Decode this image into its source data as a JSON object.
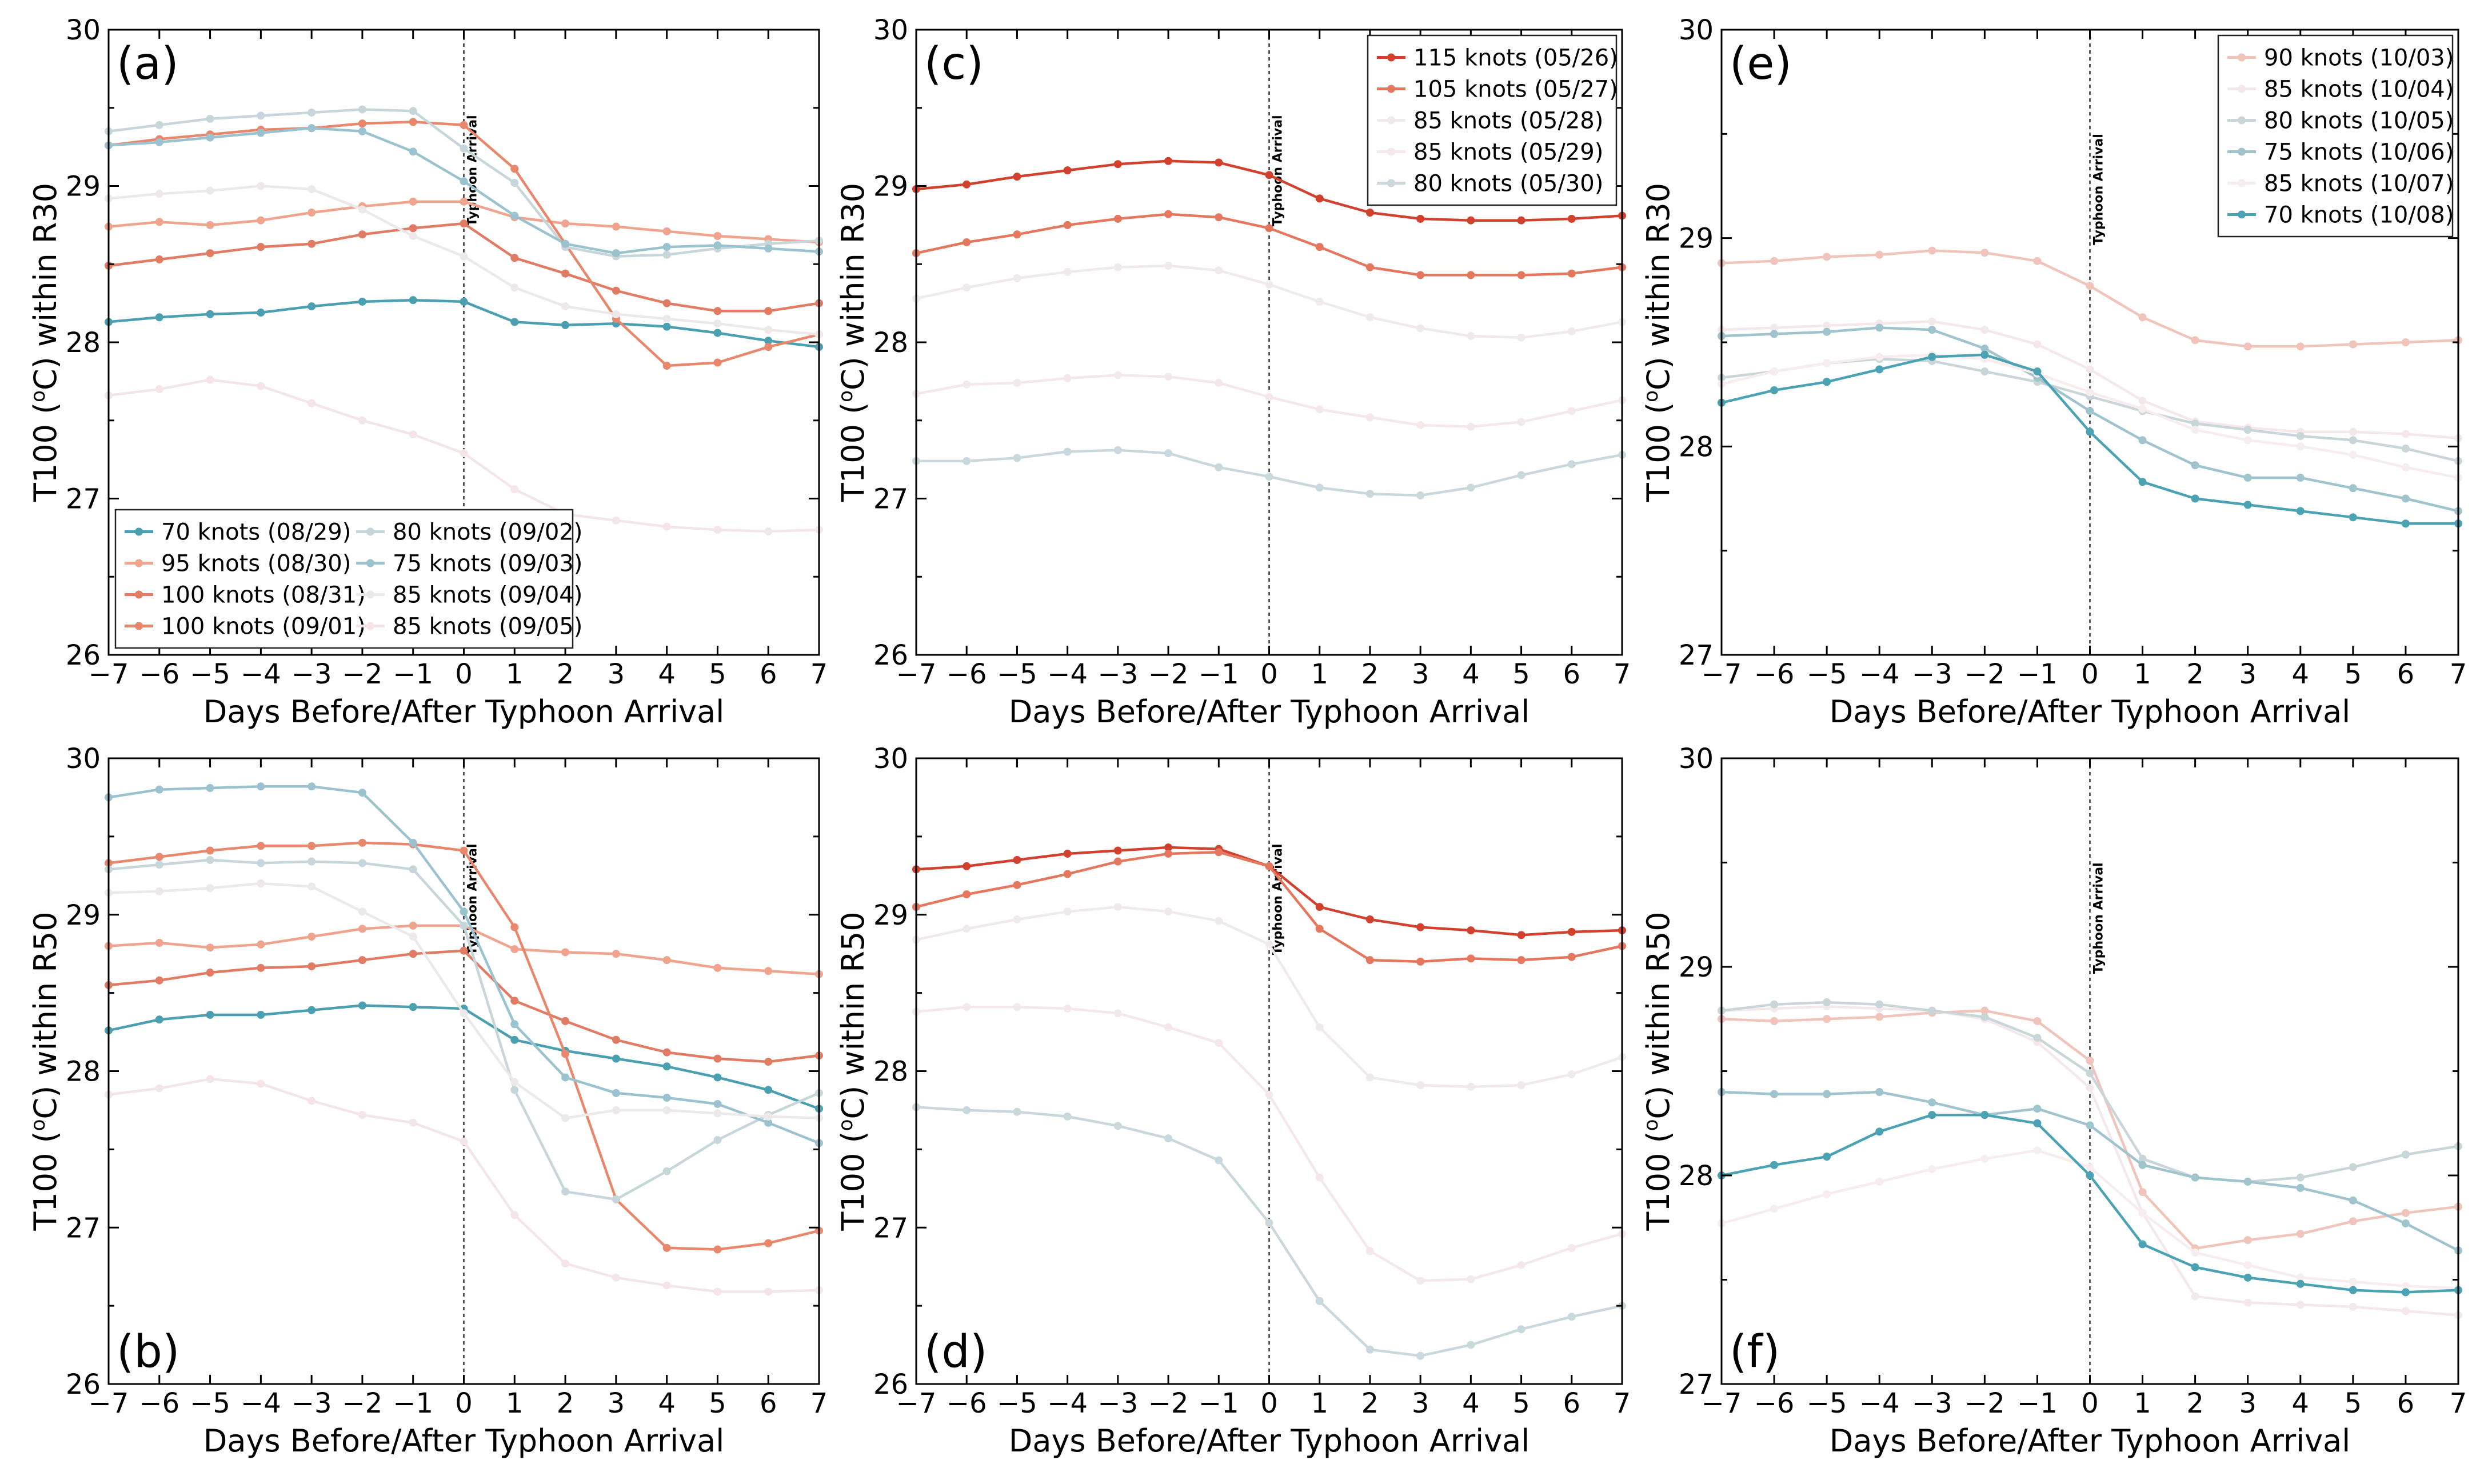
{
  "chart_data": [
    {
      "id": "a",
      "panel_label": "(a)",
      "type": "line",
      "xlabel": "Days Before/After Typhoon Arrival",
      "ylabel_prefix": "T100 (",
      "ylabel_sup": "o",
      "ylabel_suffix": "C) within R30",
      "xlim": [
        -7,
        7
      ],
      "ylim": [
        26,
        30
      ],
      "yticks": [
        26,
        27,
        28,
        29,
        30
      ],
      "annotation": "Typhoon Arrival",
      "legend": {
        "position": "bottom-left",
        "columns": 2
      },
      "x": [
        -7,
        -6,
        -5,
        -4,
        -3,
        -2,
        -1,
        0,
        1,
        2,
        3,
        4,
        5,
        6,
        7
      ],
      "series": [
        {
          "name": "70 knots (08/29)",
          "color": "#4a9fb0",
          "values": [
            28.13,
            28.16,
            28.18,
            28.19,
            28.23,
            28.26,
            28.27,
            28.26,
            28.13,
            28.11,
            28.12,
            28.1,
            28.06,
            28.01,
            27.97
          ]
        },
        {
          "name": "95 knots (08/30)",
          "color": "#f0a48e",
          "values": [
            28.74,
            28.77,
            28.75,
            28.78,
            28.83,
            28.87,
            28.9,
            28.9,
            28.8,
            28.76,
            28.74,
            28.71,
            28.68,
            28.66,
            28.64
          ]
        },
        {
          "name": "100 knots (08/31)",
          "color": "#e17b63",
          "values": [
            28.49,
            28.53,
            28.57,
            28.61,
            28.63,
            28.69,
            28.73,
            28.76,
            28.54,
            28.44,
            28.33,
            28.25,
            28.2,
            28.2,
            28.25
          ]
        },
        {
          "name": "100 knots (09/01)",
          "color": "#e8876c",
          "values": [
            29.26,
            29.3,
            29.33,
            29.36,
            29.37,
            29.4,
            29.41,
            29.39,
            29.11,
            28.63,
            28.15,
            27.85,
            27.87,
            27.97,
            28.05
          ]
        },
        {
          "name": "80 knots (09/02)",
          "color": "#c6d6da",
          "values": [
            29.35,
            29.39,
            29.43,
            29.45,
            29.47,
            29.49,
            29.48,
            29.24,
            29.02,
            28.61,
            28.55,
            28.56,
            28.6,
            28.63,
            28.65
          ]
        },
        {
          "name": "75 knots (09/03)",
          "color": "#9bc3cf",
          "values": [
            29.26,
            29.28,
            29.31,
            29.34,
            29.37,
            29.35,
            29.22,
            29.03,
            28.81,
            28.63,
            28.57,
            28.61,
            28.62,
            28.6,
            28.58
          ]
        },
        {
          "name": "85 knots (09/04)",
          "color": "#ede9ea",
          "values": [
            28.92,
            28.95,
            28.97,
            29.0,
            28.98,
            28.85,
            28.68,
            28.55,
            28.35,
            28.23,
            28.18,
            28.15,
            28.12,
            28.08,
            28.05
          ]
        },
        {
          "name": "85 knots (09/05)",
          "color": "#f4e6e8",
          "values": [
            27.66,
            27.7,
            27.76,
            27.72,
            27.61,
            27.5,
            27.41,
            27.29,
            27.06,
            26.9,
            26.86,
            26.82,
            26.8,
            26.79,
            26.8
          ]
        }
      ]
    },
    {
      "id": "c",
      "panel_label": "(c)",
      "type": "line",
      "xlabel": "Days Before/After Typhoon Arrival",
      "ylabel_prefix": "T100 (",
      "ylabel_sup": "o",
      "ylabel_suffix": "C) within R30",
      "xlim": [
        -7,
        7
      ],
      "ylim": [
        26,
        30
      ],
      "yticks": [
        26,
        27,
        28,
        29,
        30
      ],
      "annotation": "Typhoon Arrival",
      "legend": {
        "position": "top-right",
        "columns": 1
      },
      "x": [
        -7,
        -6,
        -5,
        -4,
        -3,
        -2,
        -1,
        0,
        1,
        2,
        3,
        4,
        5,
        6,
        7
      ],
      "series": [
        {
          "name": "115 knots (05/26)",
          "color": "#d2402e",
          "values": [
            28.98,
            29.01,
            29.06,
            29.1,
            29.14,
            29.16,
            29.15,
            29.07,
            28.92,
            28.83,
            28.79,
            28.78,
            28.78,
            28.79,
            28.81
          ]
        },
        {
          "name": "105 knots (05/27)",
          "color": "#e4775d",
          "values": [
            28.57,
            28.64,
            28.69,
            28.75,
            28.79,
            28.82,
            28.8,
            28.73,
            28.61,
            28.48,
            28.43,
            28.43,
            28.43,
            28.44,
            28.48
          ]
        },
        {
          "name": "85 knots (05/28)",
          "color": "#f1eaec",
          "values": [
            28.28,
            28.35,
            28.41,
            28.45,
            28.48,
            28.49,
            28.46,
            28.37,
            28.26,
            28.16,
            28.09,
            28.04,
            28.03,
            28.07,
            28.13
          ]
        },
        {
          "name": "85 knots (05/29)",
          "color": "#f5e8ea",
          "values": [
            27.67,
            27.73,
            27.74,
            27.77,
            27.79,
            27.78,
            27.74,
            27.65,
            27.57,
            27.52,
            27.47,
            27.46,
            27.49,
            27.56,
            27.63
          ]
        },
        {
          "name": "80 knots (05/30)",
          "color": "#c9d8dc",
          "values": [
            27.24,
            27.24,
            27.26,
            27.3,
            27.31,
            27.29,
            27.2,
            27.14,
            27.07,
            27.03,
            27.02,
            27.07,
            27.15,
            27.22,
            27.28
          ]
        }
      ]
    },
    {
      "id": "e",
      "panel_label": "(e)",
      "type": "line",
      "xlabel": "Days Before/After Typhoon Arrival",
      "ylabel_prefix": "T100 (",
      "ylabel_sup": "o",
      "ylabel_suffix": "C) within R30",
      "xlim": [
        -7,
        7
      ],
      "ylim": [
        27,
        30
      ],
      "yticks": [
        27,
        28,
        29,
        30
      ],
      "annotation": "Typhoon Arrival",
      "legend": {
        "position": "top-right",
        "columns": 1
      },
      "x": [
        -7,
        -6,
        -5,
        -4,
        -3,
        -2,
        -1,
        0,
        1,
        2,
        3,
        4,
        5,
        6,
        7
      ],
      "series": [
        {
          "name": "90 knots (10/03)",
          "color": "#f0c4bb",
          "values": [
            28.88,
            28.89,
            28.91,
            28.92,
            28.94,
            28.93,
            28.89,
            28.77,
            28.62,
            28.51,
            28.48,
            28.48,
            28.49,
            28.5,
            28.51
          ]
        },
        {
          "name": "85 knots (10/04)",
          "color": "#f4e8ea",
          "values": [
            28.56,
            28.57,
            28.58,
            28.59,
            28.6,
            28.56,
            28.49,
            28.37,
            28.22,
            28.12,
            28.09,
            28.07,
            28.07,
            28.06,
            28.04
          ]
        },
        {
          "name": "80 knots (10/05)",
          "color": "#c9d6d9",
          "values": [
            28.33,
            28.36,
            28.4,
            28.42,
            28.41,
            28.36,
            28.31,
            28.24,
            28.17,
            28.11,
            28.08,
            28.05,
            28.03,
            27.99,
            27.93
          ]
        },
        {
          "name": "75 knots (10/06)",
          "color": "#9fc4cd",
          "values": [
            28.53,
            28.54,
            28.55,
            28.57,
            28.56,
            28.47,
            28.33,
            28.17,
            28.03,
            27.91,
            27.85,
            27.85,
            27.8,
            27.75,
            27.69
          ]
        },
        {
          "name": "85 knots (10/07)",
          "color": "#f7ecee",
          "values": [
            28.3,
            28.36,
            28.4,
            28.43,
            28.44,
            28.42,
            28.35,
            28.26,
            28.18,
            28.08,
            28.03,
            28.0,
            27.96,
            27.9,
            27.85
          ]
        },
        {
          "name": "70 knots (10/08)",
          "color": "#4aa2b2",
          "values": [
            28.21,
            28.27,
            28.31,
            28.37,
            28.43,
            28.44,
            28.36,
            28.07,
            27.83,
            27.75,
            27.72,
            27.69,
            27.66,
            27.63,
            27.63
          ]
        }
      ]
    },
    {
      "id": "b",
      "panel_label": "(b)",
      "type": "line",
      "xlabel": "Days Before/After Typhoon Arrival",
      "ylabel_prefix": "T100 (",
      "ylabel_sup": "o",
      "ylabel_suffix": "C) within R50",
      "xlim": [
        -7,
        7
      ],
      "ylim": [
        26,
        30
      ],
      "yticks": [
        26,
        27,
        28,
        29,
        30
      ],
      "annotation": "Typhoon Arrival",
      "legend": null,
      "x": [
        -7,
        -6,
        -5,
        -4,
        -3,
        -2,
        -1,
        0,
        1,
        2,
        3,
        4,
        5,
        6,
        7
      ],
      "series": [
        {
          "name": "70 knots (08/29)",
          "color": "#4a9fb0",
          "values": [
            28.26,
            28.33,
            28.36,
            28.36,
            28.39,
            28.42,
            28.41,
            28.4,
            28.2,
            28.13,
            28.08,
            28.03,
            27.96,
            27.88,
            27.76
          ]
        },
        {
          "name": "95 knots (08/30)",
          "color": "#f0a48e",
          "values": [
            28.8,
            28.82,
            28.79,
            28.81,
            28.86,
            28.91,
            28.93,
            28.93,
            28.78,
            28.76,
            28.75,
            28.71,
            28.66,
            28.64,
            28.62
          ]
        },
        {
          "name": "100 knots (08/31)",
          "color": "#e17b63",
          "values": [
            28.55,
            28.58,
            28.63,
            28.66,
            28.67,
            28.71,
            28.75,
            28.77,
            28.45,
            28.32,
            28.2,
            28.12,
            28.08,
            28.06,
            28.1
          ]
        },
        {
          "name": "100 knots (09/01)",
          "color": "#e8876c",
          "values": [
            29.33,
            29.37,
            29.41,
            29.44,
            29.44,
            29.46,
            29.45,
            29.41,
            28.92,
            28.11,
            27.18,
            26.87,
            26.86,
            26.9,
            26.98
          ]
        },
        {
          "name": "80 knots (09/02)",
          "color": "#c6d6da",
          "values": [
            29.29,
            29.32,
            29.35,
            29.33,
            29.34,
            29.33,
            29.29,
            28.93,
            27.88,
            27.23,
            27.18,
            27.36,
            27.56,
            27.72,
            27.86
          ]
        },
        {
          "name": "75 knots (09/03)",
          "color": "#9bc3cf",
          "values": [
            29.75,
            29.8,
            29.81,
            29.82,
            29.82,
            29.78,
            29.46,
            29.02,
            28.3,
            27.96,
            27.86,
            27.83,
            27.79,
            27.67,
            27.54
          ]
        },
        {
          "name": "85 knots (09/04)",
          "color": "#ede9ea",
          "values": [
            29.14,
            29.15,
            29.17,
            29.2,
            29.18,
            29.02,
            28.86,
            28.37,
            27.93,
            27.7,
            27.75,
            27.75,
            27.73,
            27.71,
            27.7
          ]
        },
        {
          "name": "85 knots (09/05)",
          "color": "#f4e6e8",
          "values": [
            27.85,
            27.89,
            27.95,
            27.92,
            27.81,
            27.72,
            27.67,
            27.55,
            27.08,
            26.77,
            26.68,
            26.63,
            26.59,
            26.59,
            26.6
          ]
        }
      ]
    },
    {
      "id": "d",
      "panel_label": "(d)",
      "type": "line",
      "xlabel": "Days Before/After Typhoon Arrival",
      "ylabel_prefix": "T100 (",
      "ylabel_sup": "o",
      "ylabel_suffix": "C) within R50",
      "xlim": [
        -7,
        7
      ],
      "ylim": [
        26,
        30
      ],
      "yticks": [
        26,
        27,
        28,
        29,
        30
      ],
      "annotation": "Typhoon Arrival",
      "legend": null,
      "x": [
        -7,
        -6,
        -5,
        -4,
        -3,
        -2,
        -1,
        0,
        1,
        2,
        3,
        4,
        5,
        6,
        7
      ],
      "series": [
        {
          "name": "115 knots (05/26)",
          "color": "#d2402e",
          "values": [
            29.29,
            29.31,
            29.35,
            29.39,
            29.41,
            29.43,
            29.42,
            29.31,
            29.05,
            28.97,
            28.92,
            28.9,
            28.87,
            28.89,
            28.9
          ]
        },
        {
          "name": "105 knots (05/27)",
          "color": "#e4775d",
          "values": [
            29.05,
            29.13,
            29.19,
            29.26,
            29.34,
            29.39,
            29.4,
            29.31,
            28.91,
            28.71,
            28.7,
            28.72,
            28.71,
            28.73,
            28.8
          ]
        },
        {
          "name": "85 knots (05/28)",
          "color": "#f1eaec",
          "values": [
            28.84,
            28.91,
            28.97,
            29.02,
            29.05,
            29.02,
            28.96,
            28.81,
            28.28,
            27.96,
            27.91,
            27.9,
            27.91,
            27.98,
            28.09
          ]
        },
        {
          "name": "85 knots (05/29)",
          "color": "#f5e8ea",
          "values": [
            28.38,
            28.41,
            28.41,
            28.4,
            28.37,
            28.28,
            28.18,
            27.85,
            27.32,
            26.85,
            26.66,
            26.67,
            26.76,
            26.87,
            26.96
          ]
        },
        {
          "name": "80 knots (05/30)",
          "color": "#c9d8dc",
          "values": [
            27.77,
            27.75,
            27.74,
            27.71,
            27.65,
            27.57,
            27.43,
            27.03,
            26.53,
            26.22,
            26.18,
            26.25,
            26.35,
            26.43,
            26.5
          ]
        }
      ]
    },
    {
      "id": "f",
      "panel_label": "(f)",
      "type": "line",
      "xlabel": "Days Before/After Typhoon Arrival",
      "ylabel_prefix": "T100 (",
      "ylabel_sup": "o",
      "ylabel_suffix": "C) within R50",
      "xlim": [
        -7,
        7
      ],
      "ylim": [
        27,
        30
      ],
      "yticks": [
        27,
        28,
        29,
        30
      ],
      "annotation": "Typhoon Arrival",
      "legend": null,
      "x": [
        -7,
        -6,
        -5,
        -4,
        -3,
        -2,
        -1,
        0,
        1,
        2,
        3,
        4,
        5,
        6,
        7
      ],
      "series": [
        {
          "name": "90 knots (10/03)",
          "color": "#f0c4bb",
          "values": [
            28.75,
            28.74,
            28.75,
            28.76,
            28.78,
            28.79,
            28.74,
            28.55,
            27.92,
            27.65,
            27.69,
            27.72,
            27.78,
            27.82,
            27.85
          ]
        },
        {
          "name": "85 knots (10/04)",
          "color": "#f4e8ea",
          "values": [
            28.79,
            28.8,
            28.81,
            28.8,
            28.79,
            28.75,
            28.64,
            28.42,
            27.82,
            27.42,
            27.39,
            27.38,
            27.37,
            27.35,
            27.33
          ]
        },
        {
          "name": "80 knots (10/05)",
          "color": "#c9d6d9",
          "values": [
            28.79,
            28.82,
            28.83,
            28.82,
            28.79,
            28.76,
            28.66,
            28.49,
            28.08,
            27.99,
            27.97,
            27.99,
            28.04,
            28.1,
            28.14
          ]
        },
        {
          "name": "75 knots (10/06)",
          "color": "#9fc4cd",
          "values": [
            28.4,
            28.39,
            28.39,
            28.4,
            28.35,
            28.29,
            28.32,
            28.24,
            28.05,
            27.99,
            27.97,
            27.94,
            27.88,
            27.77,
            27.64
          ]
        },
        {
          "name": "85 knots (10/07)",
          "color": "#f7ecee",
          "values": [
            27.77,
            27.84,
            27.91,
            27.97,
            28.03,
            28.08,
            28.12,
            28.04,
            27.82,
            27.63,
            27.57,
            27.51,
            27.49,
            27.47,
            27.46
          ]
        },
        {
          "name": "70 knots (10/08)",
          "color": "#4aa2b2",
          "values": [
            28.0,
            28.05,
            28.09,
            28.21,
            28.29,
            28.29,
            28.25,
            28.0,
            27.67,
            27.56,
            27.51,
            27.48,
            27.45,
            27.44,
            27.45
          ]
        }
      ]
    }
  ]
}
